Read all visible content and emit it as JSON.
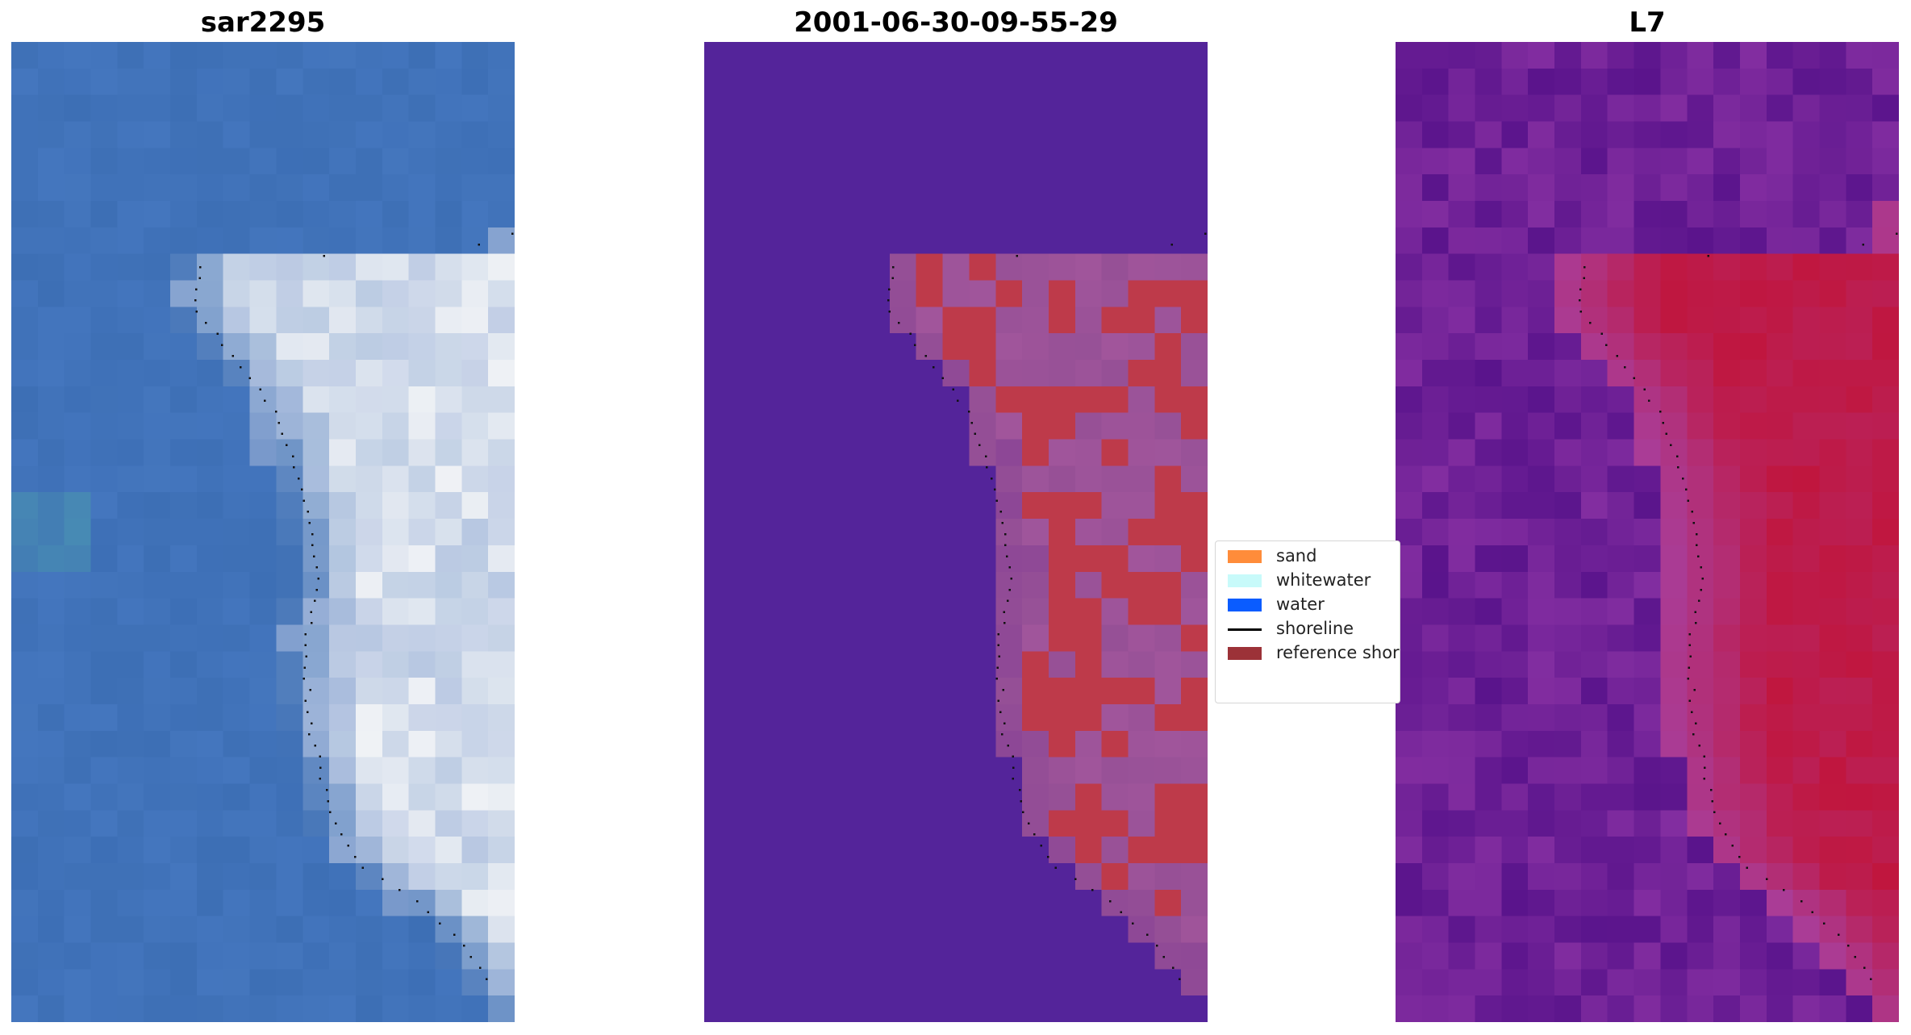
{
  "panels": [
    {
      "title": "sar2295",
      "kind": "rgb"
    },
    {
      "title": "2001-06-30-09-55-29",
      "kind": "classified"
    },
    {
      "title": "L7",
      "kind": "index"
    }
  ],
  "legend": {
    "items": [
      {
        "label": "sand",
        "color": "#ff8c3a",
        "type": "patch"
      },
      {
        "label": "whitewater",
        "color": "#c8fafa",
        "type": "patch"
      },
      {
        "label": "water",
        "color": "#0a5cff",
        "type": "patch"
      },
      {
        "label": "shoreline",
        "color": "#000000",
        "type": "line"
      },
      {
        "label": "reference shoreline",
        "color": "#9c3238",
        "type": "patch"
      }
    ]
  },
  "colors": {
    "water_blue": "#3d6fb5",
    "surf_white": "#f1f3f6",
    "class_background": "#54249a",
    "class_sand_red": "#be3a4a",
    "class_mix_pink": "#8a4f9e",
    "index_purple": "#6a1e9c",
    "index_red": "#c0163e"
  }
}
